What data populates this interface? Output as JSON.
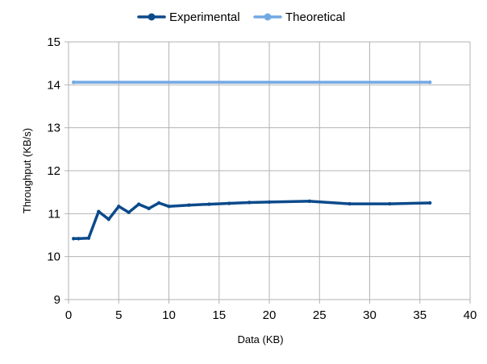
{
  "chart_data": {
    "type": "line",
    "title": "",
    "xlabel": "Data (KB)",
    "ylabel": "Throughput (KB/s)",
    "xlim": [
      0,
      40
    ],
    "ylim": [
      9,
      15
    ],
    "xticks": [
      0,
      5,
      10,
      15,
      20,
      25,
      30,
      35,
      40
    ],
    "yticks": [
      9,
      10,
      11,
      12,
      13,
      14,
      15
    ],
    "grid": true,
    "legend_position": "top",
    "series": [
      {
        "name": "Experimental",
        "color": "#0b4a8b",
        "marker": "circle",
        "x": [
          0.5,
          1,
          2,
          3,
          4,
          5,
          6,
          7,
          8,
          9,
          10,
          12,
          14,
          16,
          18,
          20,
          24,
          28,
          32,
          36
        ],
        "y": [
          10.42,
          10.42,
          10.43,
          11.05,
          10.87,
          11.17,
          11.03,
          11.22,
          11.12,
          11.25,
          11.17,
          11.2,
          11.22,
          11.24,
          11.26,
          11.27,
          11.29,
          11.23,
          11.23,
          11.25
        ]
      },
      {
        "name": "Theoretical",
        "color": "#72a9e4",
        "marker": "circle",
        "x": [
          0.5,
          36
        ],
        "y": [
          14.06,
          14.06
        ]
      }
    ]
  }
}
